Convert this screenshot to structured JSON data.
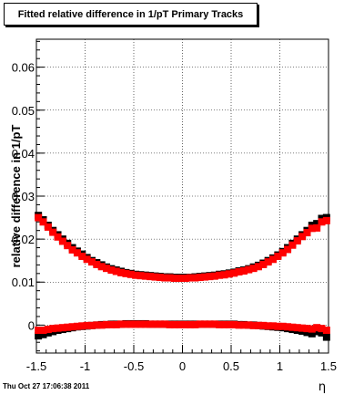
{
  "chart_data": {
    "type": "scatter",
    "title": "Fitted relative difference in 1/pT  Primary Tracks",
    "xlabel": "η",
    "ylabel": "relative difference in 1/pT",
    "xlim": [
      -1.5,
      1.5
    ],
    "ylim": [
      -0.0065,
      0.0665
    ],
    "x_ticks": [
      "-1.5",
      "-1",
      "-0.5",
      "0",
      "0.5",
      "1",
      "1.5"
    ],
    "y_ticks": [
      "0",
      "0.01",
      "0.02",
      "0.03",
      "0.04",
      "0.05",
      "0.06"
    ],
    "grid": true,
    "series": [
      {
        "color": "#000000",
        "x": [
          -1.48,
          -1.43,
          -1.38,
          -1.33,
          -1.28,
          -1.23,
          -1.18,
          -1.13,
          -1.08,
          -1.03,
          -0.98,
          -0.93,
          -0.88,
          -0.83,
          -0.78,
          -0.73,
          -0.68,
          -0.63,
          -0.58,
          -0.53,
          -0.48,
          -0.43,
          -0.38,
          -0.33,
          -0.28,
          -0.23,
          -0.18,
          -0.13,
          -0.08,
          -0.03,
          0.03,
          0.08,
          0.13,
          0.18,
          0.23,
          0.28,
          0.33,
          0.38,
          0.43,
          0.48,
          0.53,
          0.58,
          0.63,
          0.68,
          0.73,
          0.78,
          0.83,
          0.88,
          0.93,
          0.98,
          1.03,
          1.08,
          1.13,
          1.18,
          1.23,
          1.28,
          1.33,
          1.38,
          1.43,
          1.48
        ],
        "y": [
          0.0255,
          0.0245,
          0.0232,
          0.022,
          0.021,
          0.02,
          0.019,
          0.018,
          0.0172,
          0.0165,
          0.0157,
          0.015,
          0.0145,
          0.014,
          0.0135,
          0.0131,
          0.0128,
          0.0125,
          0.0122,
          0.012,
          0.0118,
          0.0117,
          0.0116,
          0.0115,
          0.0114,
          0.0113,
          0.0112,
          0.0112,
          0.0111,
          0.0111,
          0.0111,
          0.0111,
          0.0112,
          0.0113,
          0.0114,
          0.0115,
          0.0116,
          0.0118,
          0.0119,
          0.0121,
          0.0123,
          0.0126,
          0.0128,
          0.0131,
          0.0135,
          0.0139,
          0.0144,
          0.015,
          0.0156,
          0.0163,
          0.0171,
          0.018,
          0.019,
          0.02,
          0.021,
          0.022,
          0.0232,
          0.0236,
          0.0248,
          0.025
        ]
      },
      {
        "color": "#ff0000",
        "x": [
          -1.48,
          -1.43,
          -1.38,
          -1.33,
          -1.28,
          -1.23,
          -1.18,
          -1.13,
          -1.08,
          -1.03,
          -0.98,
          -0.93,
          -0.88,
          -0.83,
          -0.78,
          -0.73,
          -0.68,
          -0.63,
          -0.58,
          -0.53,
          -0.48,
          -0.43,
          -0.38,
          -0.33,
          -0.28,
          -0.23,
          -0.18,
          -0.13,
          -0.08,
          -0.03,
          0.03,
          0.08,
          0.13,
          0.18,
          0.23,
          0.28,
          0.33,
          0.38,
          0.43,
          0.48,
          0.53,
          0.58,
          0.63,
          0.68,
          0.73,
          0.78,
          0.83,
          0.88,
          0.93,
          0.98,
          1.03,
          1.08,
          1.13,
          1.18,
          1.23,
          1.28,
          1.33,
          1.38,
          1.43,
          1.48
        ],
        "y": [
          0.025,
          0.024,
          0.0228,
          0.0216,
          0.0205,
          0.0195,
          0.0185,
          0.0175,
          0.0168,
          0.016,
          0.0153,
          0.0147,
          0.0141,
          0.0136,
          0.0132,
          0.0128,
          0.0125,
          0.0122,
          0.012,
          0.0118,
          0.0116,
          0.0115,
          0.0114,
          0.0113,
          0.0112,
          0.0111,
          0.011,
          0.011,
          0.0109,
          0.0109,
          0.0109,
          0.011,
          0.011,
          0.0111,
          0.0112,
          0.0113,
          0.0114,
          0.0116,
          0.0117,
          0.0119,
          0.0121,
          0.0124,
          0.0126,
          0.0129,
          0.0132,
          0.0136,
          0.0141,
          0.0147,
          0.0153,
          0.016,
          0.0168,
          0.0176,
          0.0186,
          0.0196,
          0.0206,
          0.0215,
          0.0225,
          0.0226,
          0.024,
          0.0243
        ]
      },
      {
        "color": "#000000",
        "x": [
          -1.48,
          -1.43,
          -1.38,
          -1.33,
          -1.28,
          -1.23,
          -1.18,
          -1.13,
          -1.08,
          -1.03,
          -0.98,
          -0.93,
          -0.88,
          -0.83,
          -0.78,
          -0.73,
          -0.68,
          -0.63,
          -0.58,
          -0.53,
          -0.48,
          -0.43,
          -0.38,
          -0.33,
          -0.28,
          -0.23,
          -0.18,
          -0.13,
          -0.08,
          -0.03,
          0.03,
          0.08,
          0.13,
          0.18,
          0.23,
          0.28,
          0.33,
          0.38,
          0.43,
          0.48,
          0.53,
          0.58,
          0.63,
          0.68,
          0.73,
          0.78,
          0.83,
          0.88,
          0.93,
          0.98,
          1.03,
          1.08,
          1.13,
          1.18,
          1.23,
          1.28,
          1.33,
          1.38,
          1.43,
          1.48
        ],
        "y": [
          -0.0025,
          -0.0022,
          -0.0018,
          -0.0015,
          -0.0012,
          -0.001,
          -0.0008,
          -0.0006,
          -0.0004,
          -0.0003,
          -0.0002,
          -0.0001,
          0.0,
          0.0001,
          0.0001,
          0.0002,
          0.0002,
          0.0002,
          0.0003,
          0.0003,
          0.0003,
          0.0003,
          0.0003,
          0.0002,
          0.0002,
          0.0002,
          0.0002,
          0.0002,
          0.0002,
          0.0002,
          0.0002,
          0.0002,
          0.0002,
          0.0002,
          0.0002,
          0.0002,
          0.0002,
          0.0002,
          0.0002,
          0.0002,
          0.0002,
          0.0001,
          0.0001,
          0.0,
          0.0,
          -0.0001,
          -0.0002,
          -0.0003,
          -0.0004,
          -0.0005,
          -0.0006,
          -0.0008,
          -0.001,
          -0.0012,
          -0.0014,
          -0.0017,
          -0.002,
          -0.0015,
          -0.0018,
          -0.0028
        ]
      },
      {
        "color": "#ff0000",
        "x": [
          -1.48,
          -1.43,
          -1.38,
          -1.33,
          -1.28,
          -1.23,
          -1.18,
          -1.13,
          -1.08,
          -1.03,
          -0.98,
          -0.93,
          -0.88,
          -0.83,
          -0.78,
          -0.73,
          -0.68,
          -0.63,
          -0.58,
          -0.53,
          -0.48,
          -0.43,
          -0.38,
          -0.33,
          -0.28,
          -0.23,
          -0.18,
          -0.13,
          -0.08,
          -0.03,
          0.03,
          0.08,
          0.13,
          0.18,
          0.23,
          0.28,
          0.33,
          0.38,
          0.43,
          0.48,
          0.53,
          0.58,
          0.63,
          0.68,
          0.73,
          0.78,
          0.83,
          0.88,
          0.93,
          0.98,
          1.03,
          1.08,
          1.13,
          1.18,
          1.23,
          1.28,
          1.33,
          1.38,
          1.43,
          1.48
        ],
        "y": [
          -0.0012,
          -0.0012,
          -0.001,
          -0.0008,
          -0.0007,
          -0.0006,
          -0.0005,
          -0.0004,
          -0.0003,
          -0.0002,
          -0.0001,
          -0.0001,
          0.0,
          0.0,
          0.0001,
          0.0001,
          0.0001,
          0.0002,
          0.0002,
          0.0002,
          0.0002,
          0.0002,
          0.0002,
          0.0002,
          0.0002,
          0.0002,
          0.0002,
          0.0001,
          0.0001,
          0.0001,
          0.0001,
          0.0001,
          0.0001,
          0.0002,
          0.0002,
          0.0002,
          0.0002,
          0.0001,
          0.0001,
          0.0001,
          0.0001,
          0.0,
          0.0,
          0.0,
          -0.0001,
          -0.0001,
          -0.0001,
          -0.0002,
          -0.0002,
          -0.0003,
          -0.0003,
          -0.0004,
          -0.0005,
          -0.0006,
          -0.0007,
          -0.0008,
          -0.0009,
          -0.0006,
          -0.0008,
          -0.0012
        ]
      }
    ],
    "footer_date": "Thu Oct 27 17:06:38 2011"
  }
}
